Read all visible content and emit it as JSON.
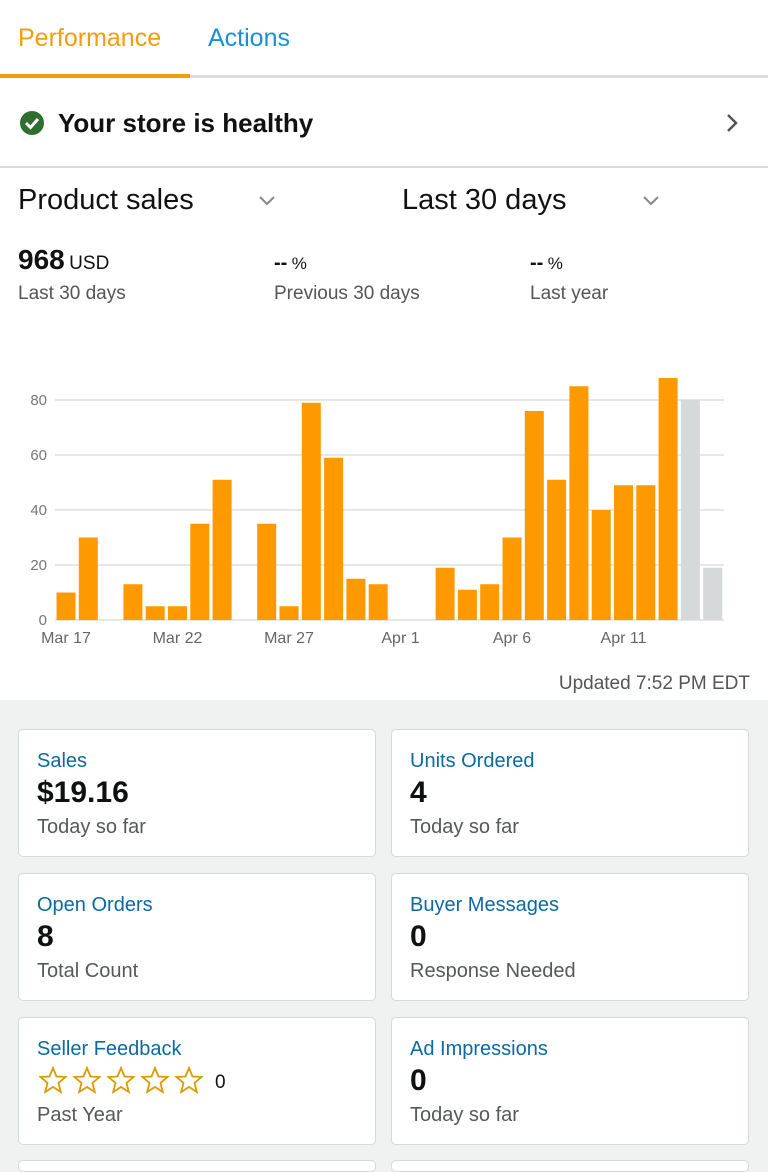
{
  "tabs": [
    "Performance",
    "Actions"
  ],
  "status": "Your store is healthy",
  "selectors": [
    "Product sales",
    "Last 30 days"
  ],
  "metrics": [
    {
      "value": "968",
      "unit": "USD",
      "label": "Last 30 days"
    },
    {
      "value": "--",
      "unit": "%",
      "label": "Previous 30 days"
    },
    {
      "value": "--",
      "unit": "%",
      "label": "Last year"
    }
  ],
  "chart_data": {
    "type": "bar",
    "categories": [
      "Mar 17",
      null,
      null,
      null,
      null,
      "Mar 22",
      null,
      null,
      null,
      null,
      "Mar 27",
      null,
      null,
      null,
      null,
      "Apr 1",
      null,
      null,
      null,
      null,
      "Apr 6",
      null,
      null,
      null,
      null,
      "Apr 11",
      null,
      null,
      null,
      null
    ],
    "values": [
      10,
      30,
      0,
      13,
      5,
      5,
      35,
      51,
      0,
      35,
      5,
      79,
      59,
      15,
      13,
      0,
      0,
      19,
      11,
      13,
      30,
      76,
      51,
      85,
      40,
      49,
      49,
      88,
      80,
      19
    ],
    "colors": [
      "#ff9900",
      "#ff9900",
      "#ff9900",
      "#ff9900",
      "#ff9900",
      "#ff9900",
      "#ff9900",
      "#ff9900",
      "#ff9900",
      "#ff9900",
      "#ff9900",
      "#ff9900",
      "#ff9900",
      "#ff9900",
      "#ff9900",
      "#ff9900",
      "#ff9900",
      "#ff9900",
      "#ff9900",
      "#ff9900",
      "#ff9900",
      "#ff9900",
      "#ff9900",
      "#ff9900",
      "#ff9900",
      "#ff9900",
      "#ff9900",
      "#ff9900",
      "#d5d9d9",
      "#d5d9d9"
    ],
    "ylim": [
      0,
      90
    ],
    "yticks": [
      0,
      20,
      40,
      60,
      80
    ],
    "grid": true
  },
  "updated": "Updated 7:52 PM EDT",
  "cards": [
    {
      "title": "Sales",
      "value": "$19.16",
      "sub": "Today so far"
    },
    {
      "title": "Units Ordered",
      "value": "4",
      "sub": "Today so far"
    },
    {
      "title": "Open Orders",
      "value": "8",
      "sub": "Total Count"
    },
    {
      "title": "Buyer Messages",
      "value": "0",
      "sub": "Response Needed"
    },
    {
      "title": "Seller Feedback",
      "value": "0",
      "sub": "Past Year"
    },
    {
      "title": "Ad Impressions",
      "value": "0",
      "sub": "Today so far"
    }
  ]
}
